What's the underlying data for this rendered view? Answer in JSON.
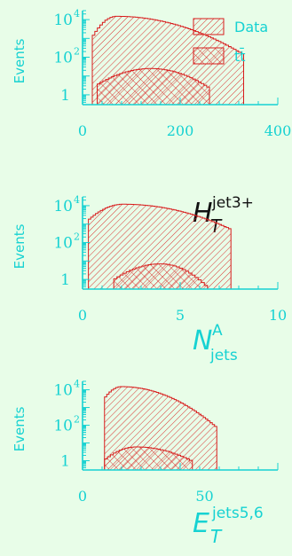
{
  "legend": {
    "entries": [
      "Data",
      "tt̄"
    ]
  },
  "colors": {
    "axis": "#16d2d2",
    "data": "#d81c1c",
    "text": "#16d2d2",
    "label": "#111111",
    "background": "#e8fde8"
  },
  "chart_data": [
    {
      "type": "histogram",
      "xlabel": {
        "main": "H",
        "sub": "T",
        "sup": "jet3+"
      },
      "ylabel": "Events",
      "yscale": "log",
      "xlim": [
        0,
        400
      ],
      "ylim": [
        0.3,
        30000
      ],
      "xticks": [
        "0",
        "200",
        "400"
      ],
      "yticks": [
        {
          "value": 1,
          "label": "1"
        },
        {
          "value": 100,
          "label": "10",
          "exp": "2"
        },
        {
          "value": 10000,
          "label": "10",
          "exp": "4"
        }
      ],
      "legend_placement": "top-right",
      "series": [
        {
          "name": "Data",
          "style": "hatch-diag",
          "range": [
            20,
            330
          ],
          "bins": 60,
          "peak_x": 70,
          "peak_y": 15000,
          "sigma_left": 22,
          "sigma_right": 85,
          "tail_end": 330
        },
        {
          "name": "tt̄",
          "style": "hatch-cross",
          "range": [
            30,
            260
          ],
          "bins": 40,
          "peak_x": 140,
          "peak_y": 25,
          "sigma_left": 55,
          "sigma_right": 55
        }
      ]
    },
    {
      "type": "histogram",
      "xlabel": {
        "main": "N",
        "sub": "jets",
        "sup": "A"
      },
      "ylabel": "Events",
      "yscale": "log",
      "xlim": [
        0,
        10
      ],
      "ylim": [
        0.3,
        30000
      ],
      "xticks": [
        "0",
        "5",
        "10"
      ],
      "yticks": [
        {
          "value": 1,
          "label": "1"
        },
        {
          "value": 100,
          "label": "10",
          "exp": "2"
        },
        {
          "value": 10000,
          "label": "10",
          "exp": "4"
        }
      ],
      "series": [
        {
          "name": "Data",
          "style": "hatch-diag",
          "range": [
            0.3,
            7.6
          ],
          "bins": 60,
          "peak_x": 2.1,
          "peak_y": 12000,
          "sigma_left": 0.9,
          "sigma_right": 2.2,
          "tail_end": 7.6
        },
        {
          "name": "tt̄",
          "style": "hatch-cross",
          "range": [
            1.6,
            6.4
          ],
          "bins": 30,
          "peak_x": 4.0,
          "peak_y": 7,
          "sigma_left": 1.2,
          "sigma_right": 1.0
        }
      ]
    },
    {
      "type": "histogram",
      "xlabel": {
        "main": "E",
        "sub": "T",
        "sup": "jets5,6"
      },
      "ylabel": "Events",
      "yscale": "log",
      "xlim": [
        0,
        80
      ],
      "ylim": [
        0.3,
        30000
      ],
      "xticks": [
        "0",
        "50"
      ],
      "yticks": [
        {
          "value": 1,
          "label": "1"
        },
        {
          "value": 100,
          "label": "10",
          "exp": "2"
        },
        {
          "value": 10000,
          "label": "10",
          "exp": "4"
        }
      ],
      "series": [
        {
          "name": "Data",
          "style": "hatch-diag",
          "range": [
            9,
            55
          ],
          "bins": 50,
          "peak_x": 16,
          "peak_y": 15000,
          "sigma_left": 4,
          "sigma_right": 12,
          "tail_end": 55
        },
        {
          "name": "tt̄",
          "style": "hatch-cross",
          "range": [
            9,
            45
          ],
          "bins": 30,
          "peak_x": 22,
          "peak_y": 6,
          "sigma_left": 7,
          "sigma_right": 12
        }
      ]
    }
  ]
}
